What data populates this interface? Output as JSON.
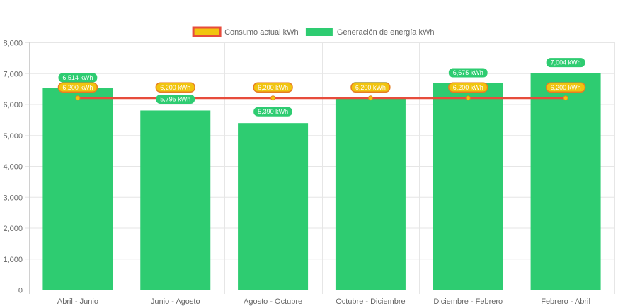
{
  "chart_data": {
    "type": "bar",
    "categories": [
      "Abril - Junio",
      "Junio - Agosto",
      "Agosto - Octubre",
      "Octubre - Diciembre",
      "Diciembre - Febrero",
      "Febrero - Abril"
    ],
    "series": [
      {
        "name": "Consumo actual kWh",
        "type": "line",
        "values": [
          6200,
          6200,
          6200,
          6200,
          6200,
          6200
        ],
        "labels": [
          "6,200 kWh",
          "6,200 kWh",
          "6,200 kWh",
          "6,200 kWh",
          "6,200 kWh",
          "6,200 kWh"
        ],
        "color": "#e74c3c",
        "fill_color": "#f1c40f"
      },
      {
        "name": "Generación de energía kWh",
        "type": "bar",
        "values": [
          6514,
          5795,
          5390,
          6200,
          6675,
          7004
        ],
        "labels": [
          "6,514 kWh",
          "5,795 kWh",
          "5,390 kWh",
          "6,200 kWh",
          "6,675 kWh",
          "7,004 kWh"
        ],
        "color": "#2ecc71"
      }
    ],
    "y_ticks": [
      "0",
      "1,000",
      "2,000",
      "3,000",
      "4,000",
      "5,000",
      "6,000",
      "7,000",
      "8,000"
    ],
    "ylim": [
      0,
      8000
    ],
    "legend_position": "top",
    "grid": true
  }
}
